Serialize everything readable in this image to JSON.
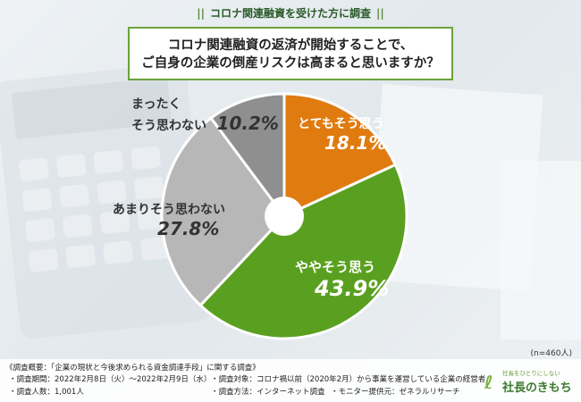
{
  "header": {
    "title": "コロナ関連融資を受けた方に調査"
  },
  "question": {
    "line1": "コロナ関連融資の返済が開始することで、",
    "line2": "ご自身の企業の倒産リスクは高まると思いますか？"
  },
  "chart_data": {
    "type": "pie",
    "slices": [
      {
        "label": "とてもそう思う",
        "value": 18.1,
        "color": "#e07b10",
        "pct_text": "18.1%"
      },
      {
        "label": "ややそう思う",
        "value": 43.9,
        "color": "#5aa020",
        "pct_text": "43.9%"
      },
      {
        "label": "あまりそう思わない",
        "value": 27.8,
        "color": "#b7b7b7",
        "pct_text": "27.8%"
      },
      {
        "label_line1": "まったく",
        "label_line2": "そう思わない",
        "value": 10.2,
        "color": "#8f8f8f",
        "pct_text": "10.2%"
      }
    ],
    "n_label": "(n=460人)"
  },
  "footer": {
    "overview": "《調査概要：「企業の現状と今後求められる資金調達手段」に関する調査》",
    "period": "・調査期間：2022年2月8日（火）〜2022年2月9日（水）",
    "count": "・調査人数：1,001人",
    "target": "・調査対象：コロナ禍以前（2020年2月）から事業を運営している企業の経営者",
    "method": "・調査方法：インターネット調査",
    "monitor": "・モニター提供元：ゼネラルリサーチ"
  },
  "logo": {
    "tagline": "社長をひとりにしない",
    "brand": "社長のきもち"
  }
}
